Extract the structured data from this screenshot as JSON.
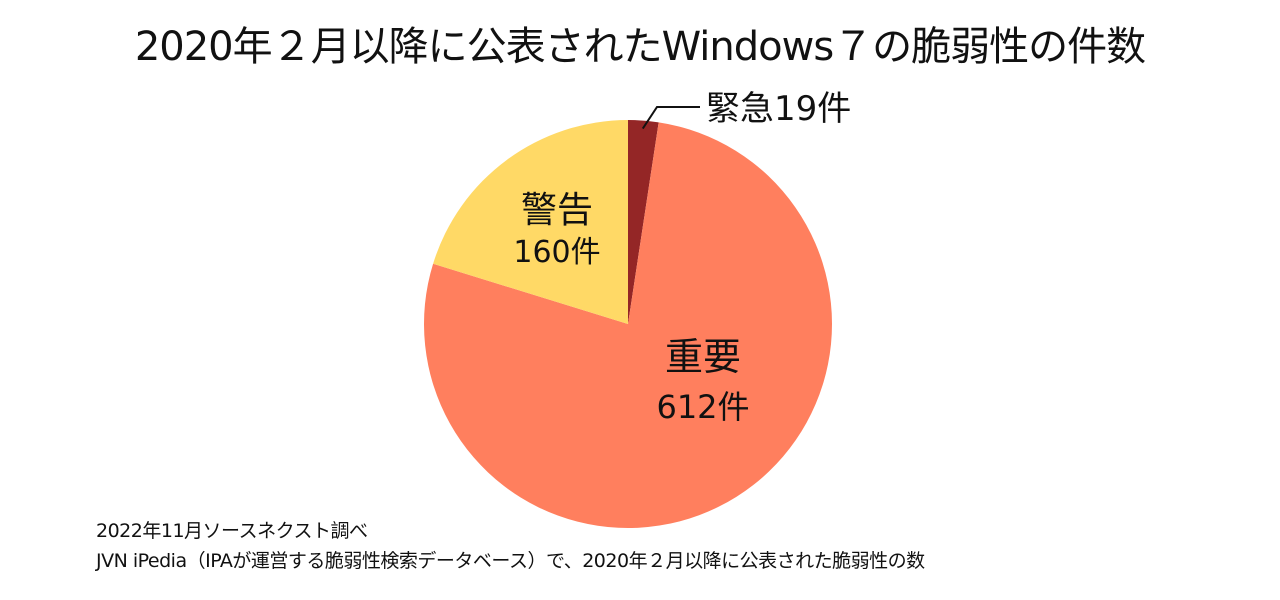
{
  "chart_data": {
    "type": "pie",
    "title": "2020年２月以降に公表されたWindows７の脆弱性の件数",
    "categories": [
      "緊急",
      "重要",
      "警告"
    ],
    "values": [
      19,
      612,
      160
    ],
    "unit": "件",
    "colors": [
      "#942626",
      "#FF7F5E",
      "#FFD966"
    ],
    "start": "top",
    "direction": "clockwise",
    "legend": "none"
  },
  "notes": {
    "line1": "2022年11月ソースネクスト調べ",
    "line2": "JVN iPedia（IPAが運営する脆弱性検索データベース）で、2020年２月以降に公表された脆弱性の数"
  }
}
